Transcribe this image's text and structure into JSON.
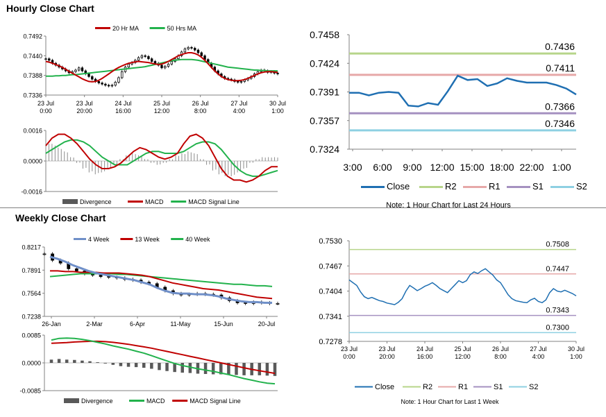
{
  "sections": {
    "hourly_title": "Hourly Close Chart",
    "weekly_title": "Weekly Close Chart"
  },
  "colors": {
    "ma_short": "#c00000",
    "ma_long": "#22b24c",
    "close": "#1f6fb2",
    "r2": "#b7d58a",
    "r1": "#e6a8a8",
    "s1": "#a591c0",
    "s2": "#8ed0e2",
    "divergence": "#595959",
    "candle": "#000000",
    "axis": "#808080"
  },
  "chart_data": [
    {
      "id": "hourly-ma",
      "type": "line",
      "title": "",
      "legend": [
        {
          "name": "20 Hr MA",
          "color": "#c00000"
        },
        {
          "name": "50 Hrs MA",
          "color": "#22b24c"
        }
      ],
      "y_ticks": [
        "0.7492",
        "0.7440",
        "0.7388",
        "0.7336"
      ],
      "ylim": [
        0.7336,
        0.7492
      ],
      "x_tick_labels": [
        [
          "23 Jul",
          "0:00"
        ],
        [
          "23 Jul",
          "20:00"
        ],
        [
          "24 Jul",
          "16:00"
        ],
        [
          "25 Jul",
          "12:00"
        ],
        [
          "26 Jul",
          "8:00"
        ],
        [
          "27 Jul",
          "4:00"
        ],
        [
          "30 Jul",
          "1:00"
        ]
      ],
      "close": [
        0.7432,
        0.7428,
        0.742,
        0.7415,
        0.741,
        0.7405,
        0.74,
        0.7395,
        0.7398,
        0.7402,
        0.7408,
        0.74,
        0.7392,
        0.7385,
        0.7378,
        0.7372,
        0.7368,
        0.7365,
        0.7362,
        0.736,
        0.7362,
        0.737,
        0.7382,
        0.7398,
        0.741,
        0.7418,
        0.7422,
        0.7428,
        0.7435,
        0.744,
        0.7438,
        0.7432,
        0.7425,
        0.742,
        0.7415,
        0.7408,
        0.7412,
        0.7418,
        0.7425,
        0.7432,
        0.744,
        0.745,
        0.7458,
        0.7462,
        0.746,
        0.7455,
        0.7448,
        0.744,
        0.743,
        0.742,
        0.741,
        0.74,
        0.7392,
        0.7385,
        0.738,
        0.7378,
        0.7376,
        0.7372,
        0.737,
        0.7372,
        0.7376,
        0.738,
        0.7385,
        0.7392,
        0.7398,
        0.7402,
        0.74,
        0.7396,
        0.7398,
        0.7394,
        0.7392
      ],
      "series": [
        {
          "name": "20 Hr MA",
          "values": [
            0.7425,
            0.7423,
            0.742,
            0.7417,
            0.7413,
            0.7409,
            0.7404,
            0.7399,
            0.7394,
            0.7389,
            0.7384,
            0.7379,
            0.7375,
            0.7372,
            0.7371,
            0.7372,
            0.7375,
            0.738,
            0.7386,
            0.7392,
            0.7398,
            0.7404,
            0.7409,
            0.7413,
            0.7417,
            0.742,
            0.7422,
            0.7424,
            0.7425,
            0.7424,
            0.7423,
            0.7422,
            0.742,
            0.7418,
            0.7417,
            0.7418,
            0.7421,
            0.7425,
            0.743,
            0.7435,
            0.744,
            0.7443,
            0.7446,
            0.7448,
            0.7448,
            0.7446,
            0.7442,
            0.7436,
            0.7428,
            0.7419,
            0.7409,
            0.74,
            0.7392,
            0.7385,
            0.738,
            0.7377,
            0.7375,
            0.7374,
            0.7374,
            0.7375,
            0.7377,
            0.738,
            0.7384,
            0.7388,
            0.7392,
            0.7395,
            0.7397,
            0.7398,
            0.7398,
            0.7397,
            0.7396
          ]
        },
        {
          "name": "50 Hrs MA",
          "values": [
            0.7386,
            0.7386,
            0.7386,
            0.7387,
            0.7387,
            0.7388,
            0.7388,
            0.7389,
            0.739,
            0.739,
            0.7391,
            0.7392,
            0.7393,
            0.7394,
            0.7395,
            0.7396,
            0.7397,
            0.7398,
            0.7399,
            0.74,
            0.7401,
            0.7402,
            0.7403,
            0.7404,
            0.7405,
            0.7406,
            0.7407,
            0.7408,
            0.7409,
            0.741,
            0.7411,
            0.7413,
            0.7415,
            0.7417,
            0.7419,
            0.7421,
            0.7423,
            0.7425,
            0.7427,
            0.7428,
            0.7429,
            0.743,
            0.743,
            0.743,
            0.743,
            0.7429,
            0.7428,
            0.7426,
            0.7424,
            0.7422,
            0.742,
            0.7418,
            0.7416,
            0.7414,
            0.7412,
            0.741,
            0.7409,
            0.7408,
            0.7407,
            0.7406,
            0.7405,
            0.7404,
            0.7403,
            0.7402,
            0.7402,
            0.7401,
            0.7401,
            0.74,
            0.74,
            0.74,
            0.74
          ]
        }
      ]
    },
    {
      "id": "hourly-macd",
      "type": "line",
      "legend": [
        {
          "name": "Divergence",
          "color": "#595959"
        },
        {
          "name": "MACD",
          "color": "#c00000"
        },
        {
          "name": "MACD Signal Line",
          "color": "#22b24c"
        }
      ],
      "y_ticks": [
        "0.0016",
        "0.0000",
        "-0.0016"
      ],
      "ylim": [
        -0.0016,
        0.0016
      ],
      "series": [
        {
          "name": "MACD",
          "values": [
            0.0008,
            0.0012,
            0.0014,
            0.0014,
            0.0012,
            0.0009,
            0.0005,
            0.0001,
            -0.0002,
            -0.0004,
            -0.0004,
            -0.0003,
            -0.0001,
            0.0002,
            0.0005,
            0.0007,
            0.0006,
            0.0004,
            0.0002,
            0.0001,
            0.0002,
            0.0004,
            0.0009,
            0.0013,
            0.0014,
            0.0012,
            0.0008,
            0.0002,
            -0.0004,
            -0.0008,
            -0.001,
            -0.001,
            -0.0011,
            -0.001,
            -0.0008,
            -0.0005,
            -0.0003,
            -0.0003
          ]
        },
        {
          "name": "MACD Signal Line",
          "values": [
            0.0004,
            0.0006,
            0.0008,
            0.001,
            0.0011,
            0.0011,
            0.001,
            0.0008,
            0.0005,
            0.0002,
            0.0,
            -0.0002,
            -0.0002,
            -0.0002,
            0.0,
            0.0002,
            0.0004,
            0.0005,
            0.0005,
            0.0004,
            0.0004,
            0.0004,
            0.0005,
            0.0007,
            0.0009,
            0.001,
            0.001,
            0.0009,
            0.0006,
            0.0002,
            -0.0002,
            -0.0005,
            -0.0007,
            -0.0008,
            -0.0008,
            -0.0007,
            -0.0006,
            -0.0005
          ]
        },
        {
          "name": "Divergence",
          "values": [
            0.001,
            0.0009,
            0.0007,
            0.0005,
            0.0002,
            -0.0001,
            -0.0004,
            -0.0006,
            -0.0007,
            -0.0006,
            -0.0004,
            -0.0002,
            0.0001,
            0.0003,
            0.0004,
            0.0003,
            0.0001,
            -0.0001,
            -0.0002,
            -0.0001,
            0.0001,
            0.0003,
            0.0004,
            0.0005,
            0.0004,
            0.0001,
            -0.0002,
            -0.0005,
            -0.0007,
            -0.0008,
            -0.0008,
            -0.0006,
            -0.0004,
            -0.0001,
            0.0001,
            0.0002,
            0.0002,
            0.0002
          ]
        }
      ]
    },
    {
      "id": "hourly-pivot",
      "type": "line",
      "legend": [
        {
          "name": "Close",
          "color": "#1f6fb2"
        },
        {
          "name": "R2",
          "color": "#b7d58a"
        },
        {
          "name": "R1",
          "color": "#e6a8a8"
        },
        {
          "name": "S1",
          "color": "#a591c0"
        },
        {
          "name": "S2",
          "color": "#8ed0e2"
        }
      ],
      "y_ticks": [
        "0.7458",
        "0.7424",
        "0.7391",
        "0.7357",
        "0.7324"
      ],
      "ylim": [
        0.7324,
        0.7458
      ],
      "x_ticks": [
        "3:00",
        "6:00",
        "9:00",
        "12:00",
        "15:00",
        "18:00",
        "22:00",
        "1:00"
      ],
      "levels": [
        {
          "name": "R2",
          "value": 0.7436,
          "label": "0.7436"
        },
        {
          "name": "R1",
          "value": 0.7411,
          "label": "0.7411"
        },
        {
          "name": "S1",
          "value": 0.7366,
          "label": "0.7366"
        },
        {
          "name": "S2",
          "value": 0.7346,
          "label": "0.7346"
        }
      ],
      "series": [
        {
          "name": "Close",
          "values": [
            0.739,
            0.739,
            0.7387,
            0.739,
            0.7391,
            0.739,
            0.7375,
            0.7374,
            0.7378,
            0.7376,
            0.7392,
            0.741,
            0.7405,
            0.7406,
            0.7398,
            0.7401,
            0.7407,
            0.7404,
            0.7402,
            0.7402,
            0.7402,
            0.7399,
            0.7395,
            0.7388
          ]
        }
      ],
      "note": "Note: 1 Hour Chart for Last 24 Hours"
    },
    {
      "id": "weekly-ma",
      "type": "line",
      "legend": [
        {
          "name": "4 Week",
          "color": "#4f81bd"
        },
        {
          "name": "13 Week",
          "color": "#c00000"
        },
        {
          "name": "40 Week",
          "color": "#22b24c"
        }
      ],
      "y_ticks": [
        "0.8217",
        "0.7891",
        "0.7564",
        "0.7238"
      ],
      "ylim": [
        0.7238,
        0.8217
      ],
      "x_ticks": [
        "26-Jan",
        "2-Mar",
        "6-Apr",
        "11-May",
        "15-Jun",
        "20-Jul"
      ],
      "close": [
        0.812,
        0.803,
        0.799,
        0.791,
        0.788,
        0.784,
        0.782,
        0.78,
        0.779,
        0.778,
        0.776,
        0.775,
        0.772,
        0.77,
        0.765,
        0.76,
        0.756,
        0.754,
        0.755,
        0.756,
        0.755,
        0.754,
        0.75,
        0.746,
        0.743,
        0.742,
        0.744,
        0.743,
        0.742,
        0.742
      ],
      "series": [
        {
          "name": "4 Week",
          "values": [
            0.808,
            0.805,
            0.801,
            0.796,
            0.792,
            0.788,
            0.785,
            0.783,
            0.781,
            0.779,
            0.777,
            0.775,
            0.772,
            0.769,
            0.764,
            0.76,
            0.757,
            0.756,
            0.756,
            0.755,
            0.755,
            0.754,
            0.752,
            0.749,
            0.747,
            0.745,
            0.744,
            0.744,
            0.743,
            0.743
          ]
        },
        {
          "name": "13 Week",
          "values": [
            0.788,
            0.788,
            0.787,
            0.787,
            0.786,
            0.786,
            0.786,
            0.785,
            0.785,
            0.785,
            0.784,
            0.783,
            0.782,
            0.78,
            0.777,
            0.774,
            0.771,
            0.769,
            0.767,
            0.765,
            0.763,
            0.762,
            0.761,
            0.759,
            0.757,
            0.755,
            0.753,
            0.751,
            0.75,
            0.749
          ]
        },
        {
          "name": "40 Week",
          "values": [
            0.78,
            0.781,
            0.782,
            0.783,
            0.784,
            0.784,
            0.784,
            0.784,
            0.784,
            0.783,
            0.783,
            0.782,
            0.781,
            0.78,
            0.779,
            0.778,
            0.777,
            0.776,
            0.775,
            0.774,
            0.773,
            0.772,
            0.771,
            0.77,
            0.769,
            0.769,
            0.768,
            0.767,
            0.767,
            0.766
          ]
        }
      ]
    },
    {
      "id": "weekly-macd",
      "type": "line",
      "legend": [
        {
          "name": "Divergence",
          "color": "#595959"
        },
        {
          "name": "MACD",
          "color": "#22b24c"
        },
        {
          "name": "MACD Signal Line",
          "color": "#c00000"
        }
      ],
      "y_ticks": [
        "0.0085",
        "0.0000",
        "-0.0085"
      ],
      "ylim": [
        -0.0085,
        0.0085
      ],
      "series": [
        {
          "name": "MACD",
          "values": [
            0.007,
            0.0075,
            0.0076,
            0.0075,
            0.0072,
            0.0068,
            0.0063,
            0.0058,
            0.0052,
            0.0047,
            0.0042,
            0.0036,
            0.003,
            0.0022,
            0.0014,
            0.0006,
            -0.0002,
            -0.0008,
            -0.0013,
            -0.0018,
            -0.0022,
            -0.0026,
            -0.0031,
            -0.0036,
            -0.0042,
            -0.0048,
            -0.0053,
            -0.0058,
            -0.0062,
            -0.0064
          ]
        },
        {
          "name": "MACD Signal Line",
          "values": [
            0.006,
            0.0061,
            0.0062,
            0.0064,
            0.0065,
            0.0066,
            0.0066,
            0.0065,
            0.0063,
            0.006,
            0.0057,
            0.0053,
            0.0049,
            0.0045,
            0.004,
            0.0035,
            0.003,
            0.0025,
            0.002,
            0.0015,
            0.001,
            0.0005,
            0.0,
            -0.0005,
            -0.001,
            -0.0015,
            -0.002,
            -0.0024,
            -0.0028,
            -0.0032
          ]
        },
        {
          "name": "Divergence",
          "values": [
            0.001,
            0.0012,
            0.001,
            0.0009,
            0.0007,
            0.0005,
            0.0002,
            -0.0002,
            -0.0006,
            -0.001,
            -0.0012,
            -0.0013,
            -0.0015,
            -0.0018,
            -0.0022,
            -0.0025,
            -0.0028,
            -0.003,
            -0.0031,
            -0.0033,
            -0.0034,
            -0.0035,
            -0.0035,
            -0.0036,
            -0.0037,
            -0.0038,
            -0.0038,
            -0.0038,
            -0.0039,
            -0.004
          ]
        }
      ]
    },
    {
      "id": "weekly-pivot",
      "type": "line",
      "legend": [
        {
          "name": "Close",
          "color": "#1f6fb2"
        },
        {
          "name": "R2",
          "color": "#b7d58a"
        },
        {
          "name": "R1",
          "color": "#e6a8a8"
        },
        {
          "name": "S1",
          "color": "#a591c0"
        },
        {
          "name": "S2",
          "color": "#8ed0e2"
        }
      ],
      "y_ticks": [
        "0.7530",
        "0.7467",
        "0.7404",
        "0.7341",
        "0.7278"
      ],
      "ylim": [
        0.7278,
        0.753
      ],
      "x_tick_labels": [
        [
          "23 Jul",
          "0:00"
        ],
        [
          "23 Jul",
          "20:00"
        ],
        [
          "24 Jul",
          "16:00"
        ],
        [
          "25 Jul",
          "12:00"
        ],
        [
          "26 Jul",
          "8:00"
        ],
        [
          "27 Jul",
          "4:00"
        ],
        [
          "30 Jul",
          "1:00"
        ]
      ],
      "levels": [
        {
          "name": "R2",
          "value": 0.7508,
          "label": "0.7508"
        },
        {
          "name": "R1",
          "value": 0.7447,
          "label": "0.7447"
        },
        {
          "name": "S1",
          "value": 0.7343,
          "label": "0.7343"
        },
        {
          "name": "S2",
          "value": 0.73,
          "label": "0.7300"
        }
      ],
      "series": [
        {
          "name": "Close",
          "values": [
            0.7432,
            0.7425,
            0.7418,
            0.7402,
            0.739,
            0.7385,
            0.7388,
            0.7384,
            0.738,
            0.7378,
            0.7374,
            0.7372,
            0.737,
            0.7376,
            0.7385,
            0.7404,
            0.7418,
            0.7412,
            0.7405,
            0.741,
            0.7416,
            0.742,
            0.7425,
            0.7418,
            0.741,
            0.7405,
            0.74,
            0.741,
            0.742,
            0.743,
            0.7425,
            0.743,
            0.7445,
            0.7452,
            0.7448,
            0.7455,
            0.746,
            0.7452,
            0.7444,
            0.7432,
            0.7425,
            0.741,
            0.7395,
            0.7385,
            0.738,
            0.7378,
            0.7376,
            0.7375,
            0.7382,
            0.7386,
            0.7378,
            0.7375,
            0.7382,
            0.74,
            0.741,
            0.7404,
            0.7402,
            0.7406,
            0.7402,
            0.7398,
            0.7392
          ]
        }
      ],
      "note": "Note: 1 Hour Chart for Last 1 Week"
    }
  ]
}
